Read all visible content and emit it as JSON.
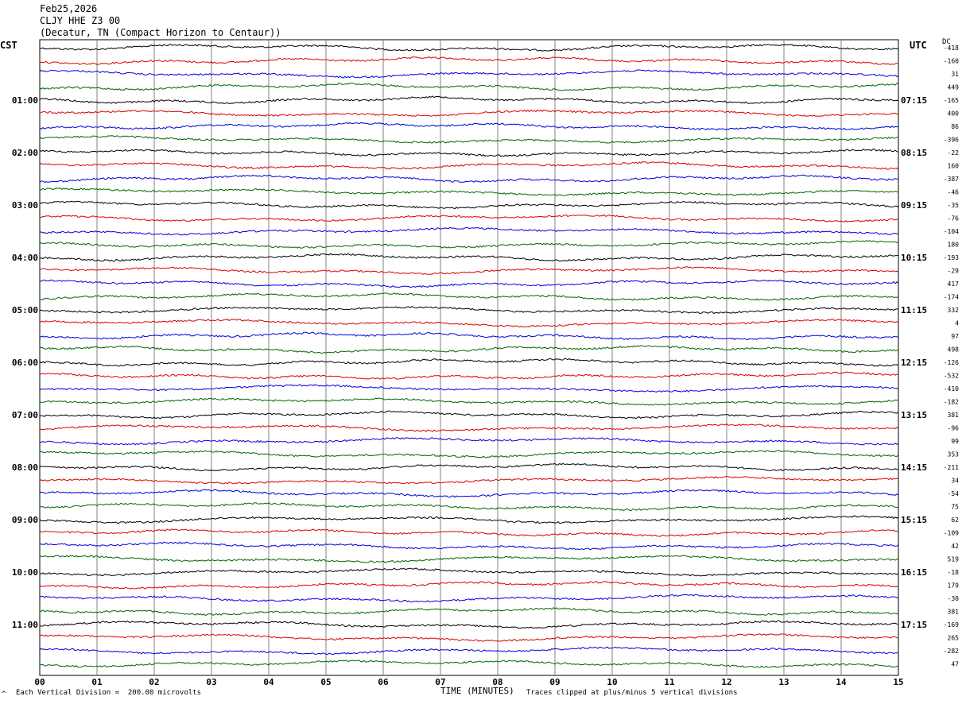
{
  "header": {
    "date": "Feb25,2026",
    "station": "CLJY HHE Z3 00",
    "location": "(Decatur, TN (Compact Horizon to Centaur))"
  },
  "left_axis_label": "CST",
  "right_axis_label": "UTC",
  "dc_label": "DC",
  "footer": {
    "scale_note": "Each Vertical Division =  200.00 microvolts",
    "xlabel": "TIME (MINUTES)",
    "clip_note": "Traces clipped at plus/minus 5 vertical divisions",
    "corner_mark": "^"
  },
  "colors": {
    "trace_cycle": [
      "#000000",
      "#dd0000",
      "#0000dd",
      "#006600"
    ],
    "grid": "#808080"
  },
  "chart_data": {
    "type": "line",
    "title": "Feb25,2026",
    "xlabel": "TIME (MINUTES)",
    "xlim": [
      0,
      15
    ],
    "x_ticks": [
      "00",
      "01",
      "02",
      "03",
      "04",
      "05",
      "06",
      "07",
      "08",
      "09",
      "10",
      "11",
      "12",
      "13",
      "14",
      "15"
    ],
    "grid": true,
    "trace_count": 48,
    "left_time_labels": [
      "01:00",
      "02:00",
      "03:00",
      "04:00",
      "05:00",
      "06:00",
      "07:00",
      "08:00",
      "09:00",
      "10:00",
      "11:00"
    ],
    "right_time_labels": [
      "07:15",
      "08:15",
      "09:15",
      "10:15",
      "11:15",
      "12:15",
      "13:15",
      "14:15",
      "15:15",
      "16:15",
      "17:15"
    ],
    "dc_offsets": [
      "-418",
      "-160",
      "31",
      "449",
      "-165",
      "400",
      "86",
      "-396",
      "-22",
      "160",
      "-387",
      "-46",
      "-35",
      "-76",
      "-104",
      "180",
      "-193",
      "-29",
      "417",
      "-174",
      "332",
      "4",
      "97",
      "498",
      "-126",
      "-532",
      "-410",
      "-182",
      "381",
      "-96",
      "99",
      "353",
      "-211",
      "34",
      "-54",
      "75",
      "62",
      "-109",
      "42",
      "519",
      "-18",
      "179",
      "-30",
      "381",
      "-169",
      "265",
      "-282",
      "47"
    ]
  }
}
